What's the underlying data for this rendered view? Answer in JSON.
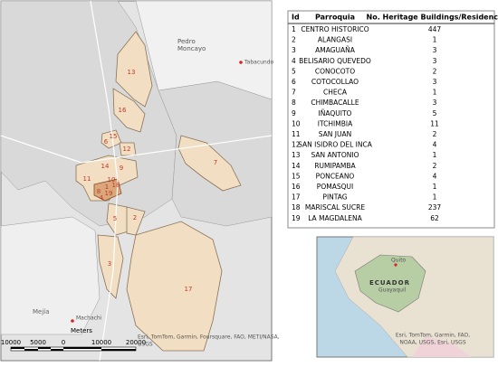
{
  "map": {
    "parish_labels": [
      "13",
      "16",
      "15",
      "6",
      "12",
      "7",
      "14",
      "9",
      "11",
      "10",
      "18",
      "1",
      "19",
      "8",
      "4",
      "5",
      "2",
      "3",
      "17"
    ],
    "places": {
      "pedro": "Pedro",
      "moncayo": "Moncayo",
      "tabacundo": "Tabacundo",
      "mejia": "Mejía",
      "machachi": "Machachi"
    },
    "scale": {
      "unit": "Meters",
      "ticks": [
        "10000",
        "5000",
        "0",
        "10000",
        "20000"
      ]
    },
    "attribution": [
      "Esri, TomTom, Garmin, Foursquare, FAO, METI/NASA,",
      "USGS"
    ]
  },
  "table": {
    "header": [
      "Id",
      "Parroquia",
      "No. Heritage Buildings/Residence"
    ],
    "rows": [
      [
        1,
        "CENTRO HISTORICO",
        447
      ],
      [
        2,
        "ALANGASI",
        1
      ],
      [
        3,
        "AMAGUAÑA",
        3
      ],
      [
        4,
        "BELISARIO QUEVEDO",
        3
      ],
      [
        5,
        "CONOCOTO",
        2
      ],
      [
        6,
        "COTOCOLLAO",
        3
      ],
      [
        7,
        "CHECA",
        1
      ],
      [
        8,
        "CHIMBACALLE",
        3
      ],
      [
        9,
        "IÑAQUITO",
        5
      ],
      [
        10,
        "ITCHIMBIA",
        11
      ],
      [
        11,
        "SAN JUAN",
        2
      ],
      [
        12,
        "SAN ISIDRO DEL INCA",
        4
      ],
      [
        13,
        "SAN ANTONIO",
        1
      ],
      [
        14,
        "RUMIPAMBA",
        2
      ],
      [
        15,
        "PONCEANO",
        4
      ],
      [
        16,
        "POMASQUI",
        1
      ],
      [
        17,
        "PINTAG",
        1
      ],
      [
        18,
        "MARISCAL SUCRE",
        237
      ],
      [
        19,
        "LA MAGDALENA",
        62
      ]
    ]
  },
  "inset": {
    "quito": "Quito",
    "country": "ECUADOR",
    "guayaquil": "Guayaquil",
    "attribution": [
      "Esri, TomTom, Garmin, FAO,",
      "NOAA, USGS, Esri, USGS"
    ]
  }
}
